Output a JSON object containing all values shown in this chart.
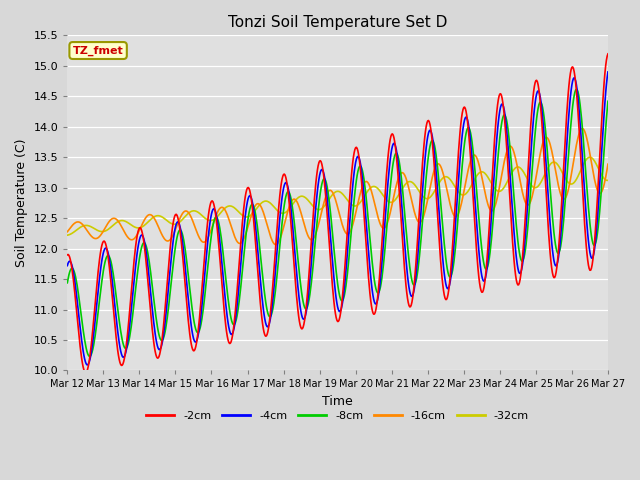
{
  "title": "Tonzi Soil Temperature Set D",
  "xlabel": "Time",
  "ylabel": "Soil Temperature (C)",
  "ylim": [
    10.0,
    15.5
  ],
  "yticks": [
    10.0,
    10.5,
    11.0,
    11.5,
    12.0,
    12.5,
    13.0,
    13.5,
    14.0,
    14.5,
    15.0,
    15.5
  ],
  "legend_label": "TZ_fmet",
  "legend_box_color": "#ffffcc",
  "legend_box_edge": "#999900",
  "legend_text_color": "#cc0000",
  "series_labels": [
    "-2cm",
    "-4cm",
    "-8cm",
    "-16cm",
    "-32cm"
  ],
  "series_colors": [
    "#ff0000",
    "#0000ff",
    "#00cc00",
    "#ff8800",
    "#cccc00"
  ],
  "x_tick_labels": [
    "Mar 12",
    "Mar 13",
    "Mar 14",
    "Mar 15",
    "Mar 16",
    "Mar 17",
    "Mar 18",
    "Mar 19",
    "Mar 20",
    "Mar 21",
    "Mar 22",
    "Mar 23",
    "Mar 24",
    "Mar 25",
    "Mar 26",
    "Mar 27"
  ],
  "n_points": 721,
  "date_start": 0,
  "date_end": 15,
  "fig_facecolor": "#d8d8d8",
  "ax_facecolor": "#e0e0e0"
}
